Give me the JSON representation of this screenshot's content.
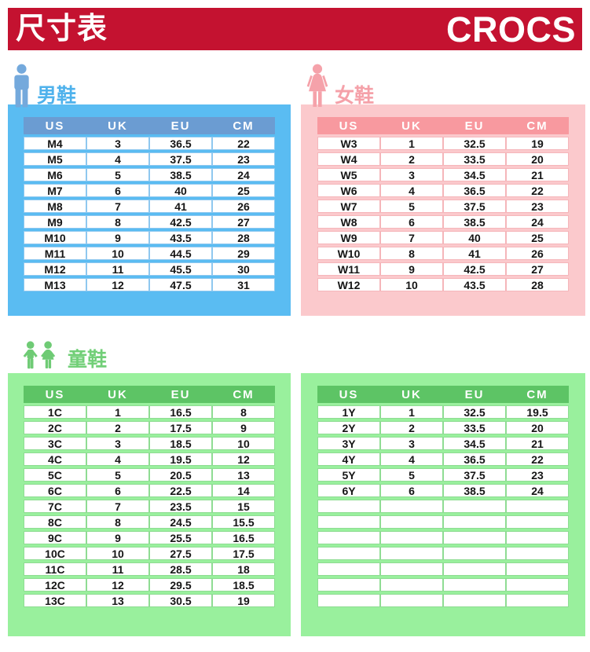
{
  "header": {
    "title": "尺寸表",
    "brand": "CROCS"
  },
  "columns": [
    "US",
    "UK",
    "EU",
    "CM"
  ],
  "colors": {
    "red": "#C41230",
    "men_panel": "#5ABCF2",
    "men_header": "#6B9CD2",
    "men_cell_border": "#8FC8EF",
    "men_label": "#4FB2EC",
    "men_icon": "#74A9DC",
    "women_panel": "#FBC9CC",
    "women_header": "#F8999F",
    "women_cell_border": "#F5B6BA",
    "women_label": "#F5A1A9",
    "women_icon": "#F5A2AA",
    "kids_panel": "#99F09D",
    "kids_header": "#5DC465",
    "kids_cell_border": "#8FDC93",
    "kids_label": "#72CF78",
    "kids_icon": "#6FCB75"
  },
  "sections": {
    "men": {
      "label": "男鞋",
      "rows": [
        [
          "M4",
          "3",
          "36.5",
          "22"
        ],
        [
          "M5",
          "4",
          "37.5",
          "23"
        ],
        [
          "M6",
          "5",
          "38.5",
          "24"
        ],
        [
          "M7",
          "6",
          "40",
          "25"
        ],
        [
          "M8",
          "7",
          "41",
          "26"
        ],
        [
          "M9",
          "8",
          "42.5",
          "27"
        ],
        [
          "M10",
          "9",
          "43.5",
          "28"
        ],
        [
          "M11",
          "10",
          "44.5",
          "29"
        ],
        [
          "M12",
          "11",
          "45.5",
          "30"
        ],
        [
          "M13",
          "12",
          "47.5",
          "31"
        ]
      ]
    },
    "women": {
      "label": "女鞋",
      "rows": [
        [
          "W3",
          "1",
          "32.5",
          "19"
        ],
        [
          "W4",
          "2",
          "33.5",
          "20"
        ],
        [
          "W5",
          "3",
          "34.5",
          "21"
        ],
        [
          "W6",
          "4",
          "36.5",
          "22"
        ],
        [
          "W7",
          "5",
          "37.5",
          "23"
        ],
        [
          "W8",
          "6",
          "38.5",
          "24"
        ],
        [
          "W9",
          "7",
          "40",
          "25"
        ],
        [
          "W10",
          "8",
          "41",
          "26"
        ],
        [
          "W11",
          "9",
          "42.5",
          "27"
        ],
        [
          "W12",
          "10",
          "43.5",
          "28"
        ]
      ]
    },
    "kids": {
      "label": "童鞋",
      "left_rows": [
        [
          "1C",
          "1",
          "16.5",
          "8"
        ],
        [
          "2C",
          "2",
          "17.5",
          "9"
        ],
        [
          "3C",
          "3",
          "18.5",
          "10"
        ],
        [
          "4C",
          "4",
          "19.5",
          "12"
        ],
        [
          "5C",
          "5",
          "20.5",
          "13"
        ],
        [
          "6C",
          "6",
          "22.5",
          "14"
        ],
        [
          "7C",
          "7",
          "23.5",
          "15"
        ],
        [
          "8C",
          "8",
          "24.5",
          "15.5"
        ],
        [
          "9C",
          "9",
          "25.5",
          "16.5"
        ],
        [
          "10C",
          "10",
          "27.5",
          "17.5"
        ],
        [
          "11C",
          "11",
          "28.5",
          "18"
        ],
        [
          "12C",
          "12",
          "29.5",
          "18.5"
        ],
        [
          "13C",
          "13",
          "30.5",
          "19"
        ]
      ],
      "right_rows": [
        [
          "1Y",
          "1",
          "32.5",
          "19.5"
        ],
        [
          "2Y",
          "2",
          "33.5",
          "20"
        ],
        [
          "3Y",
          "3",
          "34.5",
          "21"
        ],
        [
          "4Y",
          "4",
          "36.5",
          "22"
        ],
        [
          "5Y",
          "5",
          "37.5",
          "23"
        ],
        [
          "6Y",
          "6",
          "38.5",
          "24"
        ],
        [
          "",
          "",
          "",
          ""
        ],
        [
          "",
          "",
          "",
          ""
        ],
        [
          "",
          "",
          "",
          ""
        ],
        [
          "",
          "",
          "",
          ""
        ],
        [
          "",
          "",
          "",
          ""
        ],
        [
          "",
          "",
          "",
          ""
        ],
        [
          "",
          "",
          "",
          ""
        ]
      ]
    }
  }
}
